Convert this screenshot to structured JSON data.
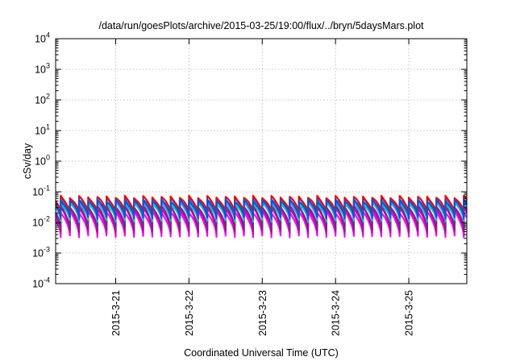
{
  "chart_data": {
    "type": "line",
    "title": "/data/run/goesPlots/archive/2015-03-25/19:00/flux/../bryn/5daysMars.plot",
    "xlabel": "Coordinated Universal Time (UTC)",
    "ylabel": "cSv/day",
    "yscale": "log",
    "ylim": [
      0.0001,
      10000
    ],
    "xlim": [
      "2015-03-20 04:20",
      "2015-03-25 19:00"
    ],
    "x_ticks": [
      {
        "label": "2015-3-21",
        "x": "2015-03-21 00:00"
      },
      {
        "label": "2015-3-22",
        "x": "2015-03-22 00:00"
      },
      {
        "label": "2015-3-23",
        "x": "2015-03-23 00:00"
      },
      {
        "label": "2015-3-24",
        "x": "2015-03-24 00:00"
      },
      {
        "label": "2015-3-25",
        "x": "2015-03-25 00:00"
      }
    ],
    "y_ticks": [
      {
        "base": "10",
        "exp": "-4",
        "value": 0.0001
      },
      {
        "base": "10",
        "exp": "-3",
        "value": 0.001
      },
      {
        "base": "10",
        "exp": "-2",
        "value": 0.01
      },
      {
        "base": "10",
        "exp": "-1",
        "value": 0.1
      },
      {
        "base": "10",
        "exp": "0",
        "value": 1
      },
      {
        "base": "10",
        "exp": "1",
        "value": 10
      },
      {
        "base": "10",
        "exp": "2",
        "value": 100
      },
      {
        "base": "10",
        "exp": "3",
        "value": 1000
      },
      {
        "base": "10",
        "exp": "4",
        "value": 10000
      }
    ],
    "grid": true,
    "pattern": {
      "period_hours": 3,
      "peak_hour_of_day": [
        0,
        3,
        6,
        9,
        12,
        15,
        18,
        21
      ]
    },
    "series": [
      {
        "color": "#ff00ff",
        "peak": 0.022,
        "trough": 0.0035
      },
      {
        "color": "#d000d0",
        "peak": 0.03,
        "trough": 0.0045
      },
      {
        "color": "#7a2a7a",
        "peak": 0.034,
        "trough": 0.0055
      },
      {
        "color": "#00c8c8",
        "peak": 0.042,
        "trough": 0.011
      },
      {
        "color": "#8080ff",
        "peak": 0.048,
        "trough": 0.013
      },
      {
        "color": "#2f6fd8",
        "peak": 0.058,
        "trough": 0.0155
      },
      {
        "color": "#e01010",
        "peak": 0.068,
        "trough": 0.019
      },
      {
        "color": "#1a4fc8",
        "peak": 0.052,
        "trough": 0.014
      }
    ]
  }
}
